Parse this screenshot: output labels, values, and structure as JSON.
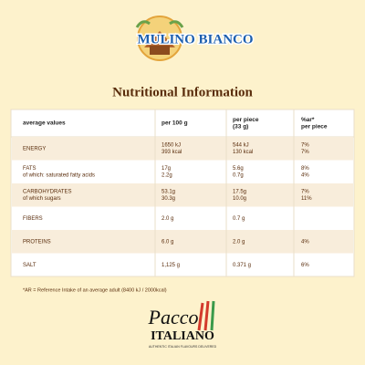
{
  "brand": {
    "name": "MULINO BIANCO"
  },
  "title": "Nutritional Information",
  "table": {
    "header": [
      [
        "average values"
      ],
      [
        "per 100 g"
      ],
      [
        "per piece",
        "(33 g)"
      ],
      [
        "%ar*",
        "per piece"
      ]
    ],
    "rows": [
      [
        [
          "ENERGY"
        ],
        [
          "1650 kJ",
          "393 kcal"
        ],
        [
          "544 kJ",
          "130 kcal"
        ],
        [
          "7%",
          "7%"
        ]
      ],
      [
        [
          "FATS",
          "of which: saturated fatty acids"
        ],
        [
          "17g",
          "2.2g"
        ],
        [
          "5.6g",
          "0.7g"
        ],
        [
          "8%",
          "4%"
        ]
      ],
      [
        [
          "CARBOHYDRATES",
          "of which sugars"
        ],
        [
          "53.1g",
          "30.3g"
        ],
        [
          "17.5g",
          "10.0g"
        ],
        [
          "7%",
          "11%"
        ]
      ],
      [
        [
          "FIBERS"
        ],
        [
          "2.0 g"
        ],
        [
          "0.7 g"
        ],
        []
      ],
      [
        [
          "PROTEINS"
        ],
        [
          "6.0 g"
        ],
        [
          "2.0 g"
        ],
        [
          "4%"
        ]
      ],
      [
        [
          "SALT"
        ],
        [
          "1,125 g"
        ],
        [
          "0.371 g"
        ],
        [
          "6%"
        ]
      ]
    ]
  },
  "footer": {
    "note": "*AR = Reference Intake of an average adult (8400 kJ / 2000kcal)",
    "brand": [
      "Pacco",
      "ITALIANO"
    ],
    "tagline": "AUTHENTIC ITALIAN FLAVOURS DELIVERED"
  }
}
